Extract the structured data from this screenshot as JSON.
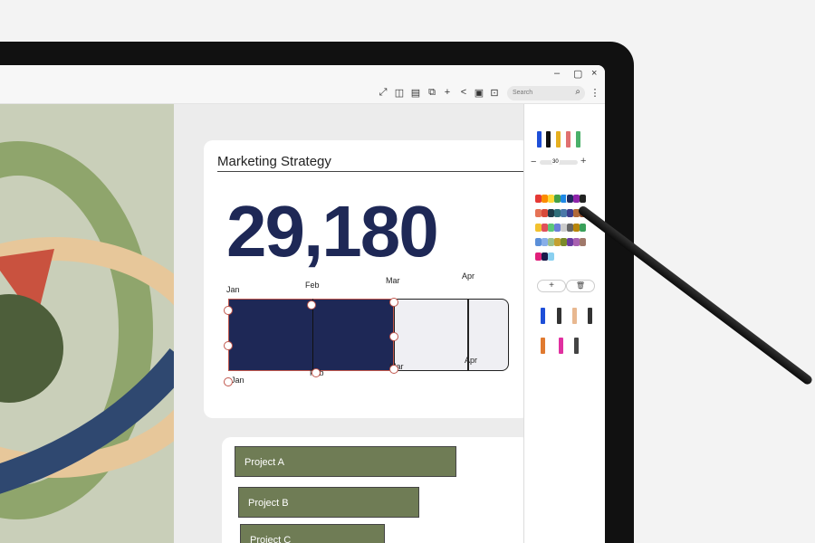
{
  "window": {
    "minimize": "–",
    "maximize": "▢",
    "close": "×"
  },
  "toolbar": {
    "icons": [
      "expand-icon",
      "book-icon",
      "page-icon",
      "pages-icon",
      "add-icon",
      "share-icon",
      "save-icon",
      "lock-icon"
    ],
    "glyphs": [
      "⤢",
      "◫",
      "▤",
      "⧉",
      "+",
      "<",
      "▣",
      "⊡"
    ],
    "search_placeholder": "Search",
    "search_icon": "⌕",
    "more": "⋮"
  },
  "card": {
    "title": "Marketing Strategy",
    "value": "29,180",
    "months_top": [
      "Jan",
      "Feb",
      "Mar",
      "Apr"
    ],
    "months_bottom": [
      "Jan",
      "Feb",
      "Mar",
      "Apr"
    ]
  },
  "projects": [
    {
      "label": "Project A",
      "progress": 0.78
    },
    {
      "label": "Project B",
      "progress": 0.6
    },
    {
      "label": "Project C",
      "progress": 0.48
    }
  ],
  "pen_panel": {
    "size_value": "30",
    "minus": "−",
    "plus": "+",
    "add": "+",
    "delete": "🗑",
    "palette": [
      [
        "#e53935",
        "#fb8c00",
        "#fdd835",
        "#43a047",
        "#1e88e5",
        "#1f2a5c",
        "#8e24aa",
        "#222"
      ],
      [
        "#e57356",
        "#d84b3b",
        "#1d3b48",
        "#2f6f7a",
        "#4a78a8",
        "#3c3c8c",
        "#b06a3a",
        "#8c4a2a"
      ],
      [
        "#f2c12e",
        "#e0505a",
        "#5cc77a",
        "#6a7fd8",
        "#ccc",
        "#666",
        "#b8860b",
        "#3aa05a"
      ],
      [
        "#5b8fd8",
        "#88aee8",
        "#9cc08a",
        "#c4a030",
        "#7a8a2a",
        "#6a3aa0",
        "#a860b0",
        "#a0786a"
      ],
      [
        "#e0207a",
        "#1a1a4a",
        "#8ad0f0",
        "#ffffff",
        "#ffffff",
        "#ffffff"
      ]
    ],
    "accent": "#1f2a5c"
  },
  "colors": {
    "navy": "#1e2856",
    "olive": "#6f7c55"
  }
}
